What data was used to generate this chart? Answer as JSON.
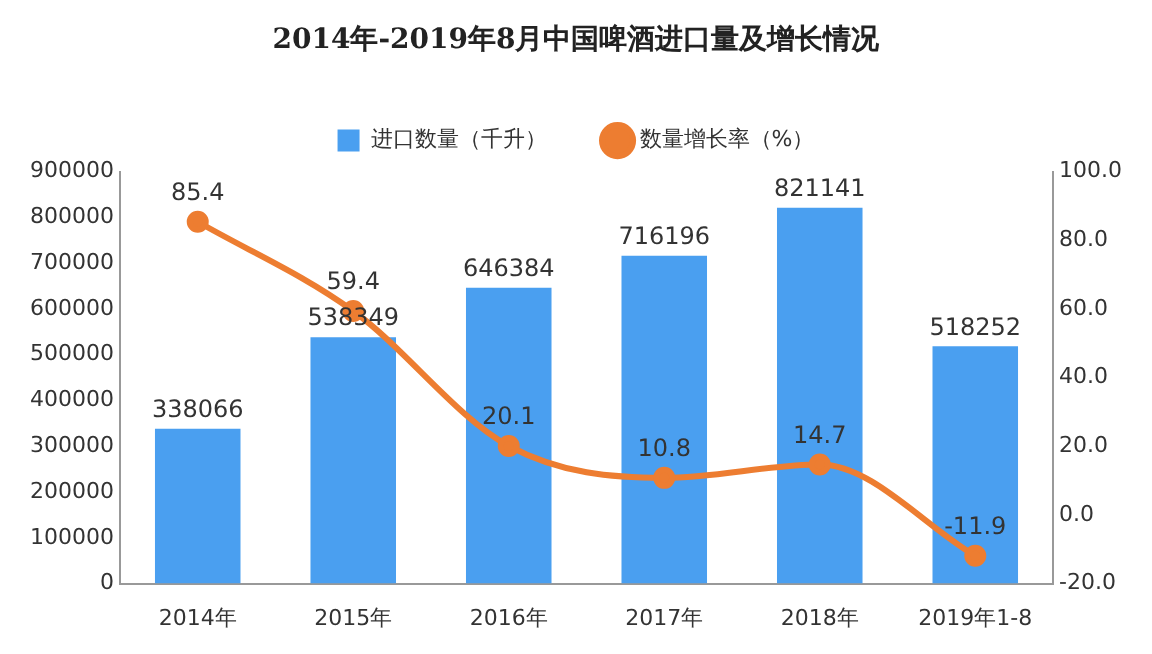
{
  "chart_data": {
    "type": "bar",
    "title": "2014年-2019年8月中国啤酒进口量及增长情况",
    "categories": [
      "2014年",
      "2015年",
      "2016年",
      "2017年",
      "2018年",
      "2019年1-8"
    ],
    "series": [
      {
        "name": "进口数量（千升）",
        "type": "bar",
        "color": "#4a9ff0",
        "values": [
          338066,
          538349,
          646384,
          716196,
          821141,
          518252
        ]
      },
      {
        "name": "数量增长率（%）",
        "type": "line",
        "axis": "y2",
        "color": "#ed7d31",
        "marker": "circle",
        "values": [
          85.4,
          59.4,
          20.1,
          10.8,
          14.7,
          -11.9
        ]
      }
    ],
    "ylim": [
      0,
      900000
    ],
    "yticks": [
      0,
      100000,
      200000,
      300000,
      400000,
      500000,
      600000,
      700000,
      800000,
      900000
    ],
    "y2lim": [
      -20,
      100
    ],
    "y2ticks": [
      {
        "value": -20,
        "label": "-20.0"
      },
      {
        "value": 0,
        "label": "0.0"
      },
      {
        "value": 20,
        "label": "20.0"
      },
      {
        "value": 40,
        "label": "40.0"
      },
      {
        "value": 60,
        "label": "60.0"
      },
      {
        "value": 80,
        "label": "80.0"
      },
      {
        "value": 100,
        "label": "100.0"
      }
    ],
    "legend": "top",
    "data_labels": true
  }
}
